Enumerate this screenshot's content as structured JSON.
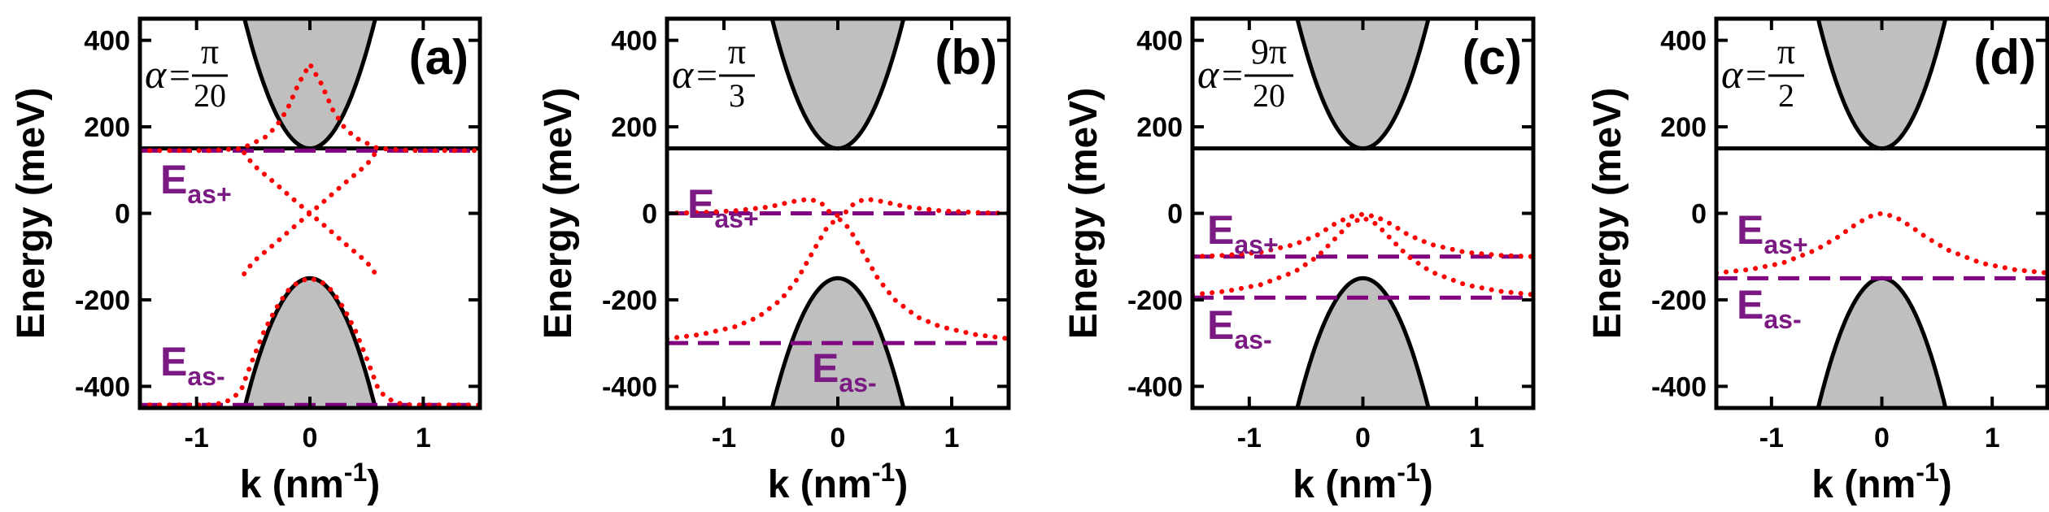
{
  "chart_data": [
    {
      "type": "line",
      "panel_label": "(a)",
      "alpha": {
        "symbol": "α",
        "eq": "=",
        "num": "π",
        "den": "20"
      },
      "xlabel": "k (nm",
      "xlabel_sup": "-1",
      "xlabel_close": ")",
      "ylabel": "Energy (meV)",
      "xlim": [
        -1.5,
        1.5
      ],
      "ylim": [
        -450,
        450
      ],
      "xticks": [
        -1,
        0,
        1
      ],
      "xtick_labels": [
        "-1",
        "0",
        "1"
      ],
      "yticks": [
        -400,
        -200,
        0,
        200,
        400
      ],
      "ytick_labels": [
        "-400",
        "-200",
        "0",
        "200",
        "400"
      ],
      "band_gap_edge": 150,
      "eas_plus": 145,
      "eas_minus": -443,
      "eas_plus_label": {
        "main": "E",
        "sub": "as+"
      },
      "eas_minus_label": {
        "main": "E",
        "sub": "as-"
      },
      "series": [
        {
          "style": "dotted",
          "color": "#ff0000",
          "x": [
            -1.5,
            -1.2,
            -0.9,
            -0.6,
            -0.4,
            -0.3,
            -0.2,
            -0.1,
            0,
            0.1,
            0.2,
            0.3,
            0.4,
            0.6,
            0.9,
            1.2,
            1.5
          ],
          "y": [
            145,
            145,
            145,
            150,
            175,
            200,
            240,
            300,
            345,
            300,
            240,
            200,
            175,
            150,
            145,
            145,
            145
          ]
        },
        {
          "style": "dotted",
          "color": "#ff0000",
          "x": [
            -0.58,
            -0.5,
            -0.4,
            -0.3,
            -0.2,
            -0.1,
            0,
            0.1,
            0.2,
            0.3,
            0.4,
            0.5,
            0.58
          ],
          "y": [
            140,
            112,
            90,
            68,
            45,
            22,
            0,
            -22,
            -45,
            -68,
            -90,
            -112,
            -140
          ]
        },
        {
          "style": "dotted",
          "color": "#ff0000",
          "x": [
            -0.58,
            -0.5,
            -0.4,
            -0.3,
            -0.2,
            -0.1,
            0,
            0.1,
            0.2,
            0.3,
            0.4,
            0.5,
            0.58
          ],
          "y": [
            -140,
            -112,
            -90,
            -68,
            -45,
            -22,
            0,
            22,
            45,
            68,
            90,
            112,
            140
          ]
        },
        {
          "style": "dotted",
          "color": "#ff0000",
          "x": [
            -1.5,
            -1.2,
            -0.9,
            -0.75,
            -0.65,
            -0.6,
            -0.5,
            -0.4,
            -0.3,
            -0.2,
            -0.1,
            0,
            0.1,
            0.2,
            0.3,
            0.4,
            0.5,
            0.6,
            0.65,
            0.75,
            0.9,
            1.2,
            1.5
          ],
          "y": [
            -443,
            -443,
            -443,
            -438,
            -420,
            -404,
            -335,
            -270,
            -220,
            -180,
            -158,
            -150,
            -158,
            -180,
            -220,
            -270,
            -335,
            -404,
            -420,
            -438,
            -443,
            -443,
            -443
          ]
        }
      ]
    },
    {
      "type": "line",
      "panel_label": "(b)",
      "alpha": {
        "symbol": "α",
        "eq": "=",
        "num": "π",
        "den": "3"
      },
      "xlabel": "k (nm",
      "xlabel_sup": "-1",
      "xlabel_close": ")",
      "ylabel": "Energy (meV)",
      "xlim": [
        -1.5,
        1.5
      ],
      "ylim": [
        -450,
        450
      ],
      "xticks": [
        -1,
        0,
        1
      ],
      "xtick_labels": [
        "-1",
        "0",
        "1"
      ],
      "yticks": [
        -400,
        -200,
        0,
        200,
        400
      ],
      "ytick_labels": [
        "-400",
        "-200",
        "0",
        "200",
        "400"
      ],
      "band_gap_edge": 150,
      "eas_plus": 0,
      "eas_minus": -300,
      "eas_plus_label": {
        "main": "E",
        "sub": "as+"
      },
      "eas_minus_label": {
        "main": "E",
        "sub": "as-"
      },
      "series": [
        {
          "style": "dotted",
          "color": "#ff0000",
          "x": [
            -1.5,
            -1.2,
            -0.9,
            -0.6,
            -0.4,
            -0.25,
            -0.15,
            -0.08,
            -0.03,
            0.03,
            0.08,
            0.15,
            0.25,
            0.4,
            0.6,
            0.9,
            1.2,
            1.5
          ],
          "y": [
            0,
            2,
            6,
            15,
            27,
            33,
            25,
            5,
            -5,
            -5,
            5,
            25,
            33,
            27,
            15,
            6,
            2,
            0
          ]
        },
        {
          "style": "dotted",
          "color": "#ff0000",
          "x": [
            -1.5,
            -1.2,
            -0.9,
            -0.7,
            -0.5,
            -0.35,
            -0.2,
            -0.1,
            0,
            0.1,
            0.2,
            0.35,
            0.5,
            0.7,
            0.9,
            1.2,
            1.5
          ],
          "y": [
            -290,
            -280,
            -262,
            -240,
            -200,
            -150,
            -80,
            -35,
            -10,
            -35,
            -80,
            -150,
            -200,
            -240,
            -262,
            -280,
            -290
          ]
        }
      ]
    },
    {
      "type": "line",
      "panel_label": "(c)",
      "alpha": {
        "symbol": "α",
        "eq": "=",
        "num": "9π",
        "den": "20"
      },
      "xlabel": "k (nm",
      "xlabel_sup": "-1",
      "xlabel_close": ")",
      "ylabel": "Energy (meV)",
      "xlim": [
        -1.5,
        1.5
      ],
      "ylim": [
        -450,
        450
      ],
      "xticks": [
        -1,
        0,
        1
      ],
      "xtick_labels": [
        "-1",
        "0",
        "1"
      ],
      "yticks": [
        -400,
        -200,
        0,
        200,
        400
      ],
      "ytick_labels": [
        "-400",
        "-200",
        "0",
        "200",
        "400"
      ],
      "band_gap_edge": 150,
      "eas_plus": -100,
      "eas_minus": -195,
      "eas_plus_label": {
        "main": "E",
        "sub": "as+"
      },
      "eas_minus_label": {
        "main": "E",
        "sub": "as-"
      },
      "series": [
        {
          "style": "dotted",
          "color": "#ff0000",
          "x": [
            -1.5,
            -1.2,
            -0.9,
            -0.6,
            -0.4,
            -0.25,
            -0.12,
            0,
            0.12,
            0.25,
            0.4,
            0.6,
            0.9,
            1.2,
            1.5
          ],
          "y": [
            -100,
            -97,
            -90,
            -72,
            -50,
            -25,
            -8,
            -2,
            -8,
            -25,
            -50,
            -72,
            -90,
            -97,
            -100
          ]
        },
        {
          "style": "dotted",
          "color": "#ff0000",
          "x": [
            -1.5,
            -1.2,
            -0.9,
            -0.6,
            -0.4,
            -0.25,
            -0.12,
            0,
            0.12,
            0.25,
            0.4,
            0.6,
            0.9,
            1.2,
            1.5
          ],
          "y": [
            -188,
            -180,
            -165,
            -135,
            -100,
            -60,
            -25,
            -10,
            -25,
            -60,
            -100,
            -135,
            -165,
            -180,
            -188
          ]
        }
      ]
    },
    {
      "type": "line",
      "panel_label": "(d)",
      "alpha": {
        "symbol": "α",
        "eq": "=",
        "num": "π",
        "den": "2"
      },
      "xlabel": "k (nm",
      "xlabel_sup": "-1",
      "xlabel_close": ")",
      "ylabel": "Energy (meV)",
      "xlim": [
        -1.5,
        1.5
      ],
      "ylim": [
        -450,
        450
      ],
      "xticks": [
        -1,
        0,
        1
      ],
      "xtick_labels": [
        "-1",
        "0",
        "1"
      ],
      "yticks": [
        -400,
        -200,
        0,
        200,
        400
      ],
      "ytick_labels": [
        "-400",
        "-200",
        "0",
        "200",
        "400"
      ],
      "band_gap_edge": 150,
      "eas_plus": null,
      "eas_minus": -150,
      "eas_plus_label": {
        "main": "E",
        "sub": "as+"
      },
      "eas_minus_label": {
        "main": "E",
        "sub": "as-"
      },
      "series": [
        {
          "style": "dotted",
          "color": "#ff0000",
          "x": [
            -1.5,
            -1.2,
            -0.9,
            -0.6,
            -0.4,
            -0.25,
            -0.12,
            0,
            0.12,
            0.25,
            0.4,
            0.6,
            0.9,
            1.2,
            1.5
          ],
          "y": [
            -138,
            -130,
            -115,
            -85,
            -55,
            -28,
            -8,
            0,
            -8,
            -28,
            -55,
            -85,
            -115,
            -130,
            -138
          ]
        }
      ]
    }
  ],
  "colors": {
    "band_fill": "#bfbfbf",
    "band_edge": "#000000",
    "dotted": "#ff0000",
    "dashed": "#800080",
    "annotation_text": "#7a1a82",
    "axes": "#000000"
  }
}
